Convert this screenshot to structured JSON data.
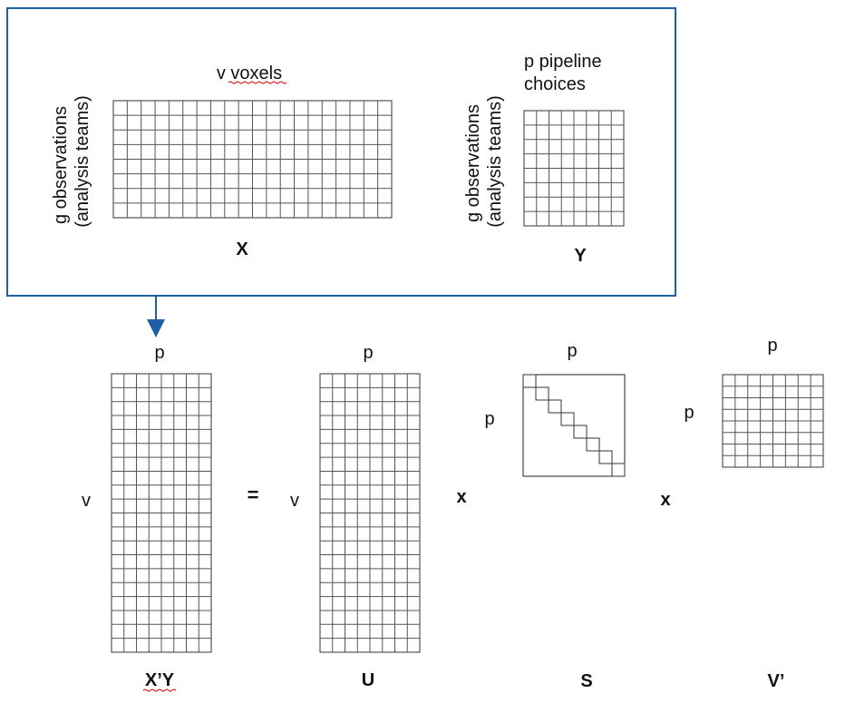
{
  "top_panel": {
    "x_matrix": {
      "top_label": "v voxels",
      "side_label_line1": "g observations",
      "side_label_line2": "(analysis teams)",
      "name": "X"
    },
    "y_matrix": {
      "top_label_line1": "p pipeline",
      "top_label_line2": "choices",
      "side_label_line1": "g observations",
      "side_label_line2": "(analysis teams)",
      "name": "Y"
    }
  },
  "equation": {
    "xty": {
      "top_label": "p",
      "side_label": "v",
      "name": "X’Y"
    },
    "equals": "=",
    "u": {
      "top_label": "p",
      "side_label": "v",
      "name": "U"
    },
    "times1": "x",
    "s": {
      "top_label": "p",
      "side_label": "p",
      "name": "S"
    },
    "times2": "x",
    "vt": {
      "top_label": "p",
      "side_label": "p",
      "name": "V’"
    }
  },
  "colors": {
    "panel_border": "#1f5fa8",
    "arrow": "#1f5fa8",
    "grid": "#555555",
    "spellcheck": "#d00000"
  }
}
